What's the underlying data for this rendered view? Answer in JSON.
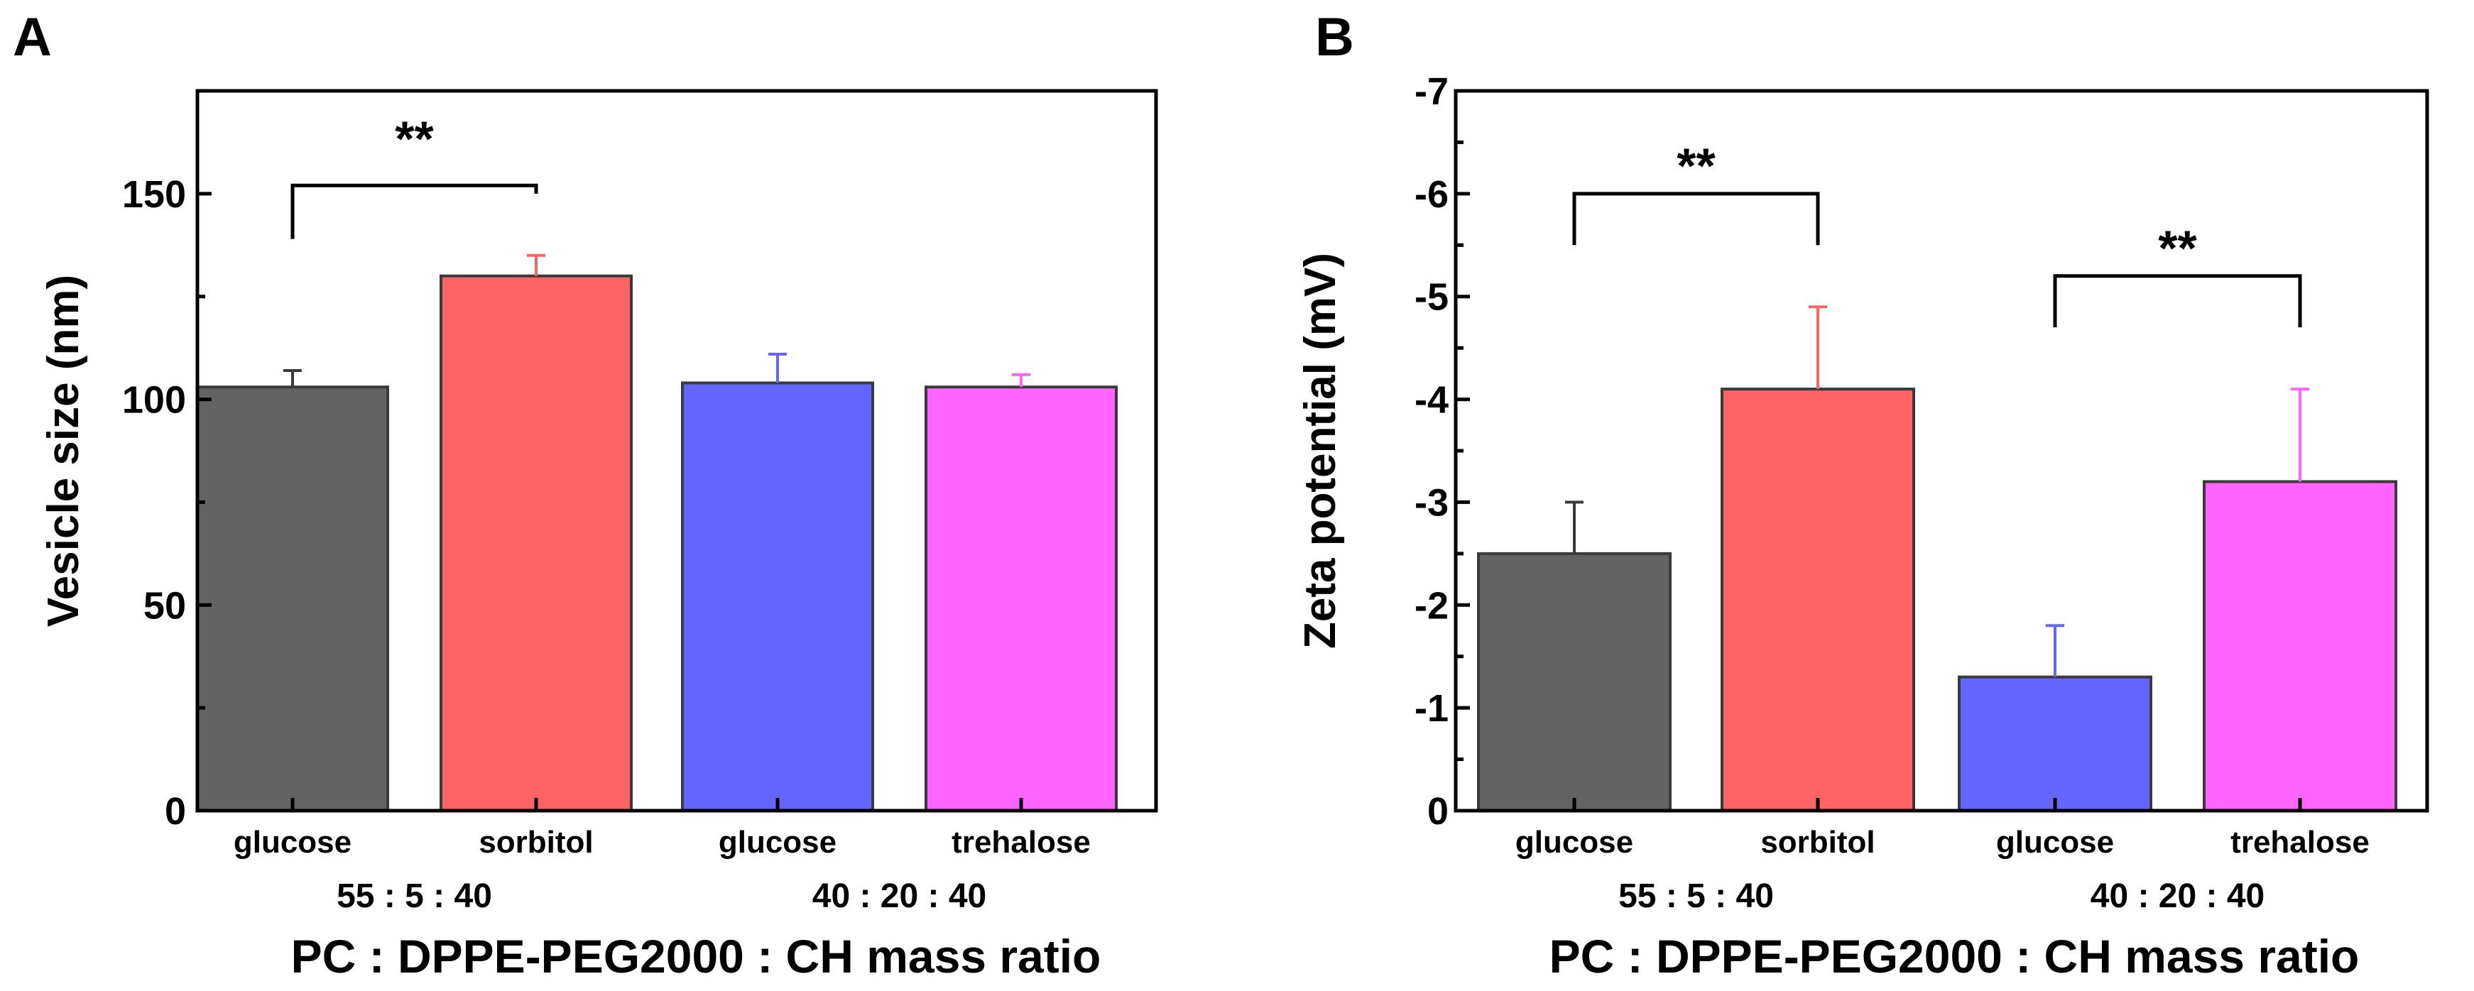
{
  "chart_data": [
    {
      "panel": "A",
      "type": "bar",
      "categories": [
        "glucose",
        "sorbitol",
        "glucose",
        "trehalose"
      ],
      "groups": [
        {
          "label": "55 : 5 : 40",
          "indices": [
            0,
            1
          ]
        },
        {
          "label": "40 : 20 : 40",
          "indices": [
            2,
            3
          ]
        }
      ],
      "values": [
        103,
        130,
        104,
        103
      ],
      "errors": [
        4,
        5,
        7,
        3
      ],
      "colors": [
        "#636363",
        "#ff6464",
        "#6464ff",
        "#ff64ff"
      ],
      "ylabel": "Vesicle size (nm)",
      "xlabel": "PC : DPPE-PEG2000 : CH mass ratio",
      "ylim": [
        0,
        175
      ],
      "yticks": [
        0,
        50,
        100,
        150
      ],
      "ytick_labels": [
        "0",
        "50",
        "100",
        "150"
      ],
      "significance": [
        {
          "from": 0,
          "to": 1,
          "label": "**",
          "y": 152,
          "y_from": 139,
          "y_to": 150,
          "label_y": 164
        }
      ]
    },
    {
      "panel": "B",
      "type": "bar",
      "categories": [
        "glucose",
        "sorbitol",
        "glucose",
        "trehalose"
      ],
      "groups": [
        {
          "label": "55 : 5 : 40",
          "indices": [
            0,
            1
          ]
        },
        {
          "label": "40 : 20 : 40",
          "indices": [
            2,
            3
          ]
        }
      ],
      "values": [
        -2.5,
        -4.1,
        -1.3,
        -3.2
      ],
      "errors": [
        0.5,
        0.8,
        0.5,
        0.9
      ],
      "colors": [
        "#636363",
        "#ff6464",
        "#6464ff",
        "#ff64ff"
      ],
      "ylabel": "Zeta potential (mV)",
      "xlabel": "PC : DPPE-PEG2000 : CH mass ratio",
      "ylim": [
        0,
        -7
      ],
      "yticks": [
        0,
        -1,
        -2,
        -3,
        -4,
        -5,
        -6,
        -7
      ],
      "ytick_labels": [
        "0",
        "-1",
        "-2",
        "-3",
        "-4",
        "-5",
        "-6",
        "-7"
      ],
      "significance": [
        {
          "from": 0,
          "to": 1,
          "label": "**",
          "y": -6.0,
          "y_from": -5.5,
          "y_to": -5.5,
          "label_y": -6.3
        },
        {
          "from": 2,
          "to": 3,
          "label": "**",
          "y": -5.2,
          "y_from": -4.7,
          "y_to": -4.7,
          "label_y": -5.5
        }
      ]
    }
  ]
}
